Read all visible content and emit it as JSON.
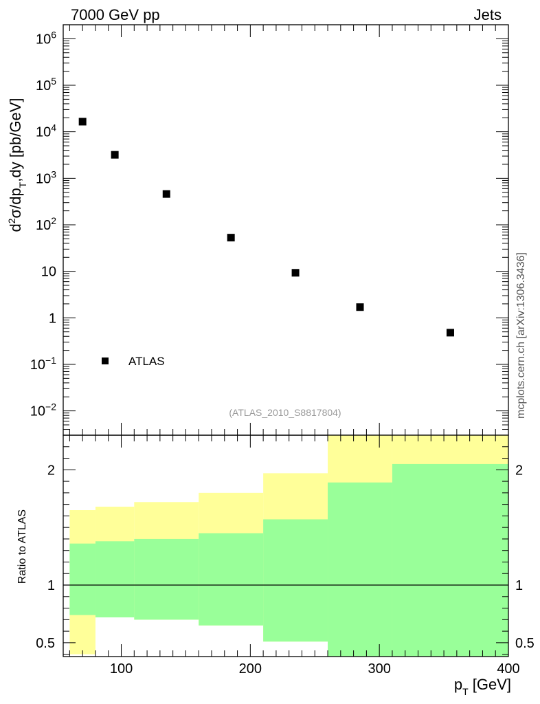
{
  "header": {
    "left": "7000 GeV pp",
    "right": "Jets"
  },
  "watermark": "mcplots.cern.ch [arXiv:1306.3436]",
  "analysis_id": "(ATLAS_2010_S8817804)",
  "colors": {
    "band_outer": "#ffff99",
    "band_inner": "#99ff99",
    "marker": "#000000",
    "reference_line": "#000000",
    "analysis_text": "#999999"
  },
  "chart_data": [
    {
      "type": "scatter",
      "panel": "main",
      "ylabel": "d²σ/dp_T,dy [pb/GeV]",
      "ylog": true,
      "xlim": [
        55,
        400
      ],
      "ylim": [
        0.003,
        2000000
      ],
      "yticks": [
        {
          "value": 0.01,
          "label": "10",
          "sup": "−2"
        },
        {
          "value": 0.1,
          "label": "10",
          "sup": "−1"
        },
        {
          "value": 1,
          "label": "1",
          "sup": ""
        },
        {
          "value": 10,
          "label": "10",
          "sup": ""
        },
        {
          "value": 100,
          "label": "10",
          "sup": "2"
        },
        {
          "value": 1000,
          "label": "10",
          "sup": "3"
        },
        {
          "value": 10000,
          "label": "10",
          "sup": "4"
        },
        {
          "value": 100000,
          "label": "10",
          "sup": "5"
        },
        {
          "value": 1000000,
          "label": "10",
          "sup": "6"
        }
      ],
      "series": [
        {
          "name": "ATLAS",
          "x": [
            70,
            95,
            135,
            185,
            235,
            285,
            355
          ],
          "y": [
            16500,
            3200,
            460,
            53,
            9.3,
            1.7,
            0.48
          ]
        }
      ],
      "legend": "bottom-left"
    },
    {
      "type": "area",
      "panel": "ratio",
      "xlabel": "p_T [GeV]",
      "ylabel": "Ratio to ATLAS",
      "xlim": [
        55,
        400
      ],
      "ylim": [
        0.38,
        2.3
      ],
      "xticks": [
        100,
        200,
        300,
        400
      ],
      "yticks": [
        0.5,
        1,
        2
      ],
      "reference": 1,
      "bins": [
        60,
        80,
        110,
        160,
        210,
        260,
        310,
        400
      ],
      "band_outer": {
        "low": [
          0.4,
          0.72,
          0.7,
          0.65,
          0.51,
          0.37,
          0.37
        ],
        "high": [
          1.65,
          1.68,
          1.72,
          1.8,
          1.97,
          2.3,
          2.3
        ]
      },
      "band_inner": {
        "low": [
          0.74,
          0.72,
          0.7,
          0.65,
          0.51,
          0.37,
          0.37
        ],
        "high": [
          1.36,
          1.38,
          1.4,
          1.45,
          1.57,
          1.89,
          2.05
        ]
      }
    }
  ]
}
